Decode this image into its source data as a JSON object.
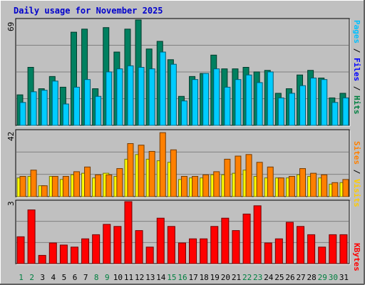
{
  "title": "Daily usage for November 2025",
  "chart_data": [
    {
      "type": "bar",
      "panel": "hits-files-pages",
      "ymax_label": "69",
      "ylim": [
        0,
        69
      ],
      "legend": [
        {
          "text": "Pages",
          "color": "#00c0ff"
        },
        {
          "text": " / ",
          "color": "#000000"
        },
        {
          "text": "Files",
          "color": "#0000ff"
        },
        {
          "text": " / ",
          "color": "#000000"
        },
        {
          "text": "Hits",
          "color": "#008040"
        }
      ],
      "series": [
        {
          "name": "Hits",
          "color": "#008060",
          "values": [
            20,
            38,
            24,
            32,
            25,
            61,
            63,
            24,
            64,
            48,
            63,
            69,
            50,
            55,
            43,
            19,
            32,
            34,
            46,
            37,
            37,
            38,
            35,
            36,
            21,
            24,
            33,
            36,
            31,
            18,
            21
          ]
        },
        {
          "name": "Files",
          "color": "#00ccff",
          "values": [
            15,
            22,
            23,
            29,
            14,
            25,
            30,
            19,
            35,
            37,
            39,
            38,
            37,
            48,
            40,
            16,
            30,
            34,
            37,
            25,
            30,
            33,
            28,
            35,
            18,
            21,
            26,
            31,
            30,
            15,
            18
          ]
        }
      ]
    },
    {
      "type": "bar",
      "panel": "visits-sites",
      "ymax_label": "42",
      "ylim": [
        0,
        42
      ],
      "legend": [
        {
          "text": "Sites",
          "color": "#ff8000"
        },
        {
          "text": " / ",
          "color": "#000000"
        },
        {
          "text": "Visits",
          "color": "#ffcc00"
        }
      ],
      "series": [
        {
          "name": "Visits",
          "color": "#ffff00",
          "values": [
            12,
            13,
            7,
            13,
            11,
            14,
            15,
            12,
            15,
            13,
            24,
            27,
            24,
            23,
            22,
            11,
            12,
            12,
            14,
            14,
            15,
            17,
            13,
            12,
            12,
            12,
            14,
            13,
            12,
            8,
            9
          ]
        },
        {
          "name": "Sites",
          "color": "#ff8000",
          "values": [
            13,
            17,
            7,
            13,
            13,
            16,
            19,
            14,
            14,
            18,
            34,
            33,
            29,
            41,
            30,
            13,
            13,
            14,
            16,
            24,
            26,
            27,
            22,
            19,
            12,
            13,
            18,
            15,
            14,
            9,
            11
          ]
        }
      ]
    },
    {
      "type": "bar",
      "panel": "kbytes",
      "ymax_label": "3",
      "ylim": [
        0,
        3
      ],
      "legend": [
        {
          "text": "KBytes",
          "color": "#ff0000"
        }
      ],
      "series": [
        {
          "name": "KBytes",
          "color": "#ff0000",
          "values": [
            1.3,
            2.6,
            0.4,
            1.0,
            0.9,
            0.8,
            1.2,
            1.4,
            1.9,
            1.8,
            3.0,
            1.6,
            0.8,
            2.2,
            1.8,
            1.0,
            1.2,
            1.2,
            1.8,
            2.2,
            1.6,
            2.4,
            2.8,
            1.0,
            1.2,
            2.0,
            1.8,
            1.4,
            0.8,
            1.4,
            1.4
          ]
        }
      ]
    }
  ],
  "x_labels": [
    {
      "text": "1",
      "weekend": true
    },
    {
      "text": "2",
      "weekend": true
    },
    {
      "text": "3",
      "weekend": false
    },
    {
      "text": "4",
      "weekend": false
    },
    {
      "text": "5",
      "weekend": false
    },
    {
      "text": "6",
      "weekend": false
    },
    {
      "text": "7",
      "weekend": false
    },
    {
      "text": "8",
      "weekend": true
    },
    {
      "text": "9",
      "weekend": true
    },
    {
      "text": "10",
      "weekend": false
    },
    {
      "text": "11",
      "weekend": false
    },
    {
      "text": "12",
      "weekend": false
    },
    {
      "text": "13",
      "weekend": false
    },
    {
      "text": "14",
      "weekend": false
    },
    {
      "text": "15",
      "weekend": true
    },
    {
      "text": "16",
      "weekend": true
    },
    {
      "text": "17",
      "weekend": false
    },
    {
      "text": "18",
      "weekend": false
    },
    {
      "text": "19",
      "weekend": false
    },
    {
      "text": "20",
      "weekend": false
    },
    {
      "text": "21",
      "weekend": false
    },
    {
      "text": "22",
      "weekend": true
    },
    {
      "text": "23",
      "weekend": true
    },
    {
      "text": "24",
      "weekend": false
    },
    {
      "text": "25",
      "weekend": false
    },
    {
      "text": "26",
      "weekend": false
    },
    {
      "text": "27",
      "weekend": false
    },
    {
      "text": "28",
      "weekend": false
    },
    {
      "text": "29",
      "weekend": true
    },
    {
      "text": "30",
      "weekend": true
    },
    {
      "text": "31",
      "weekend": false
    }
  ],
  "colors": {
    "weekday_label": "#000000",
    "weekend_label": "#008040",
    "plot_bg": "#c0c0c0",
    "grid": "#808080"
  }
}
